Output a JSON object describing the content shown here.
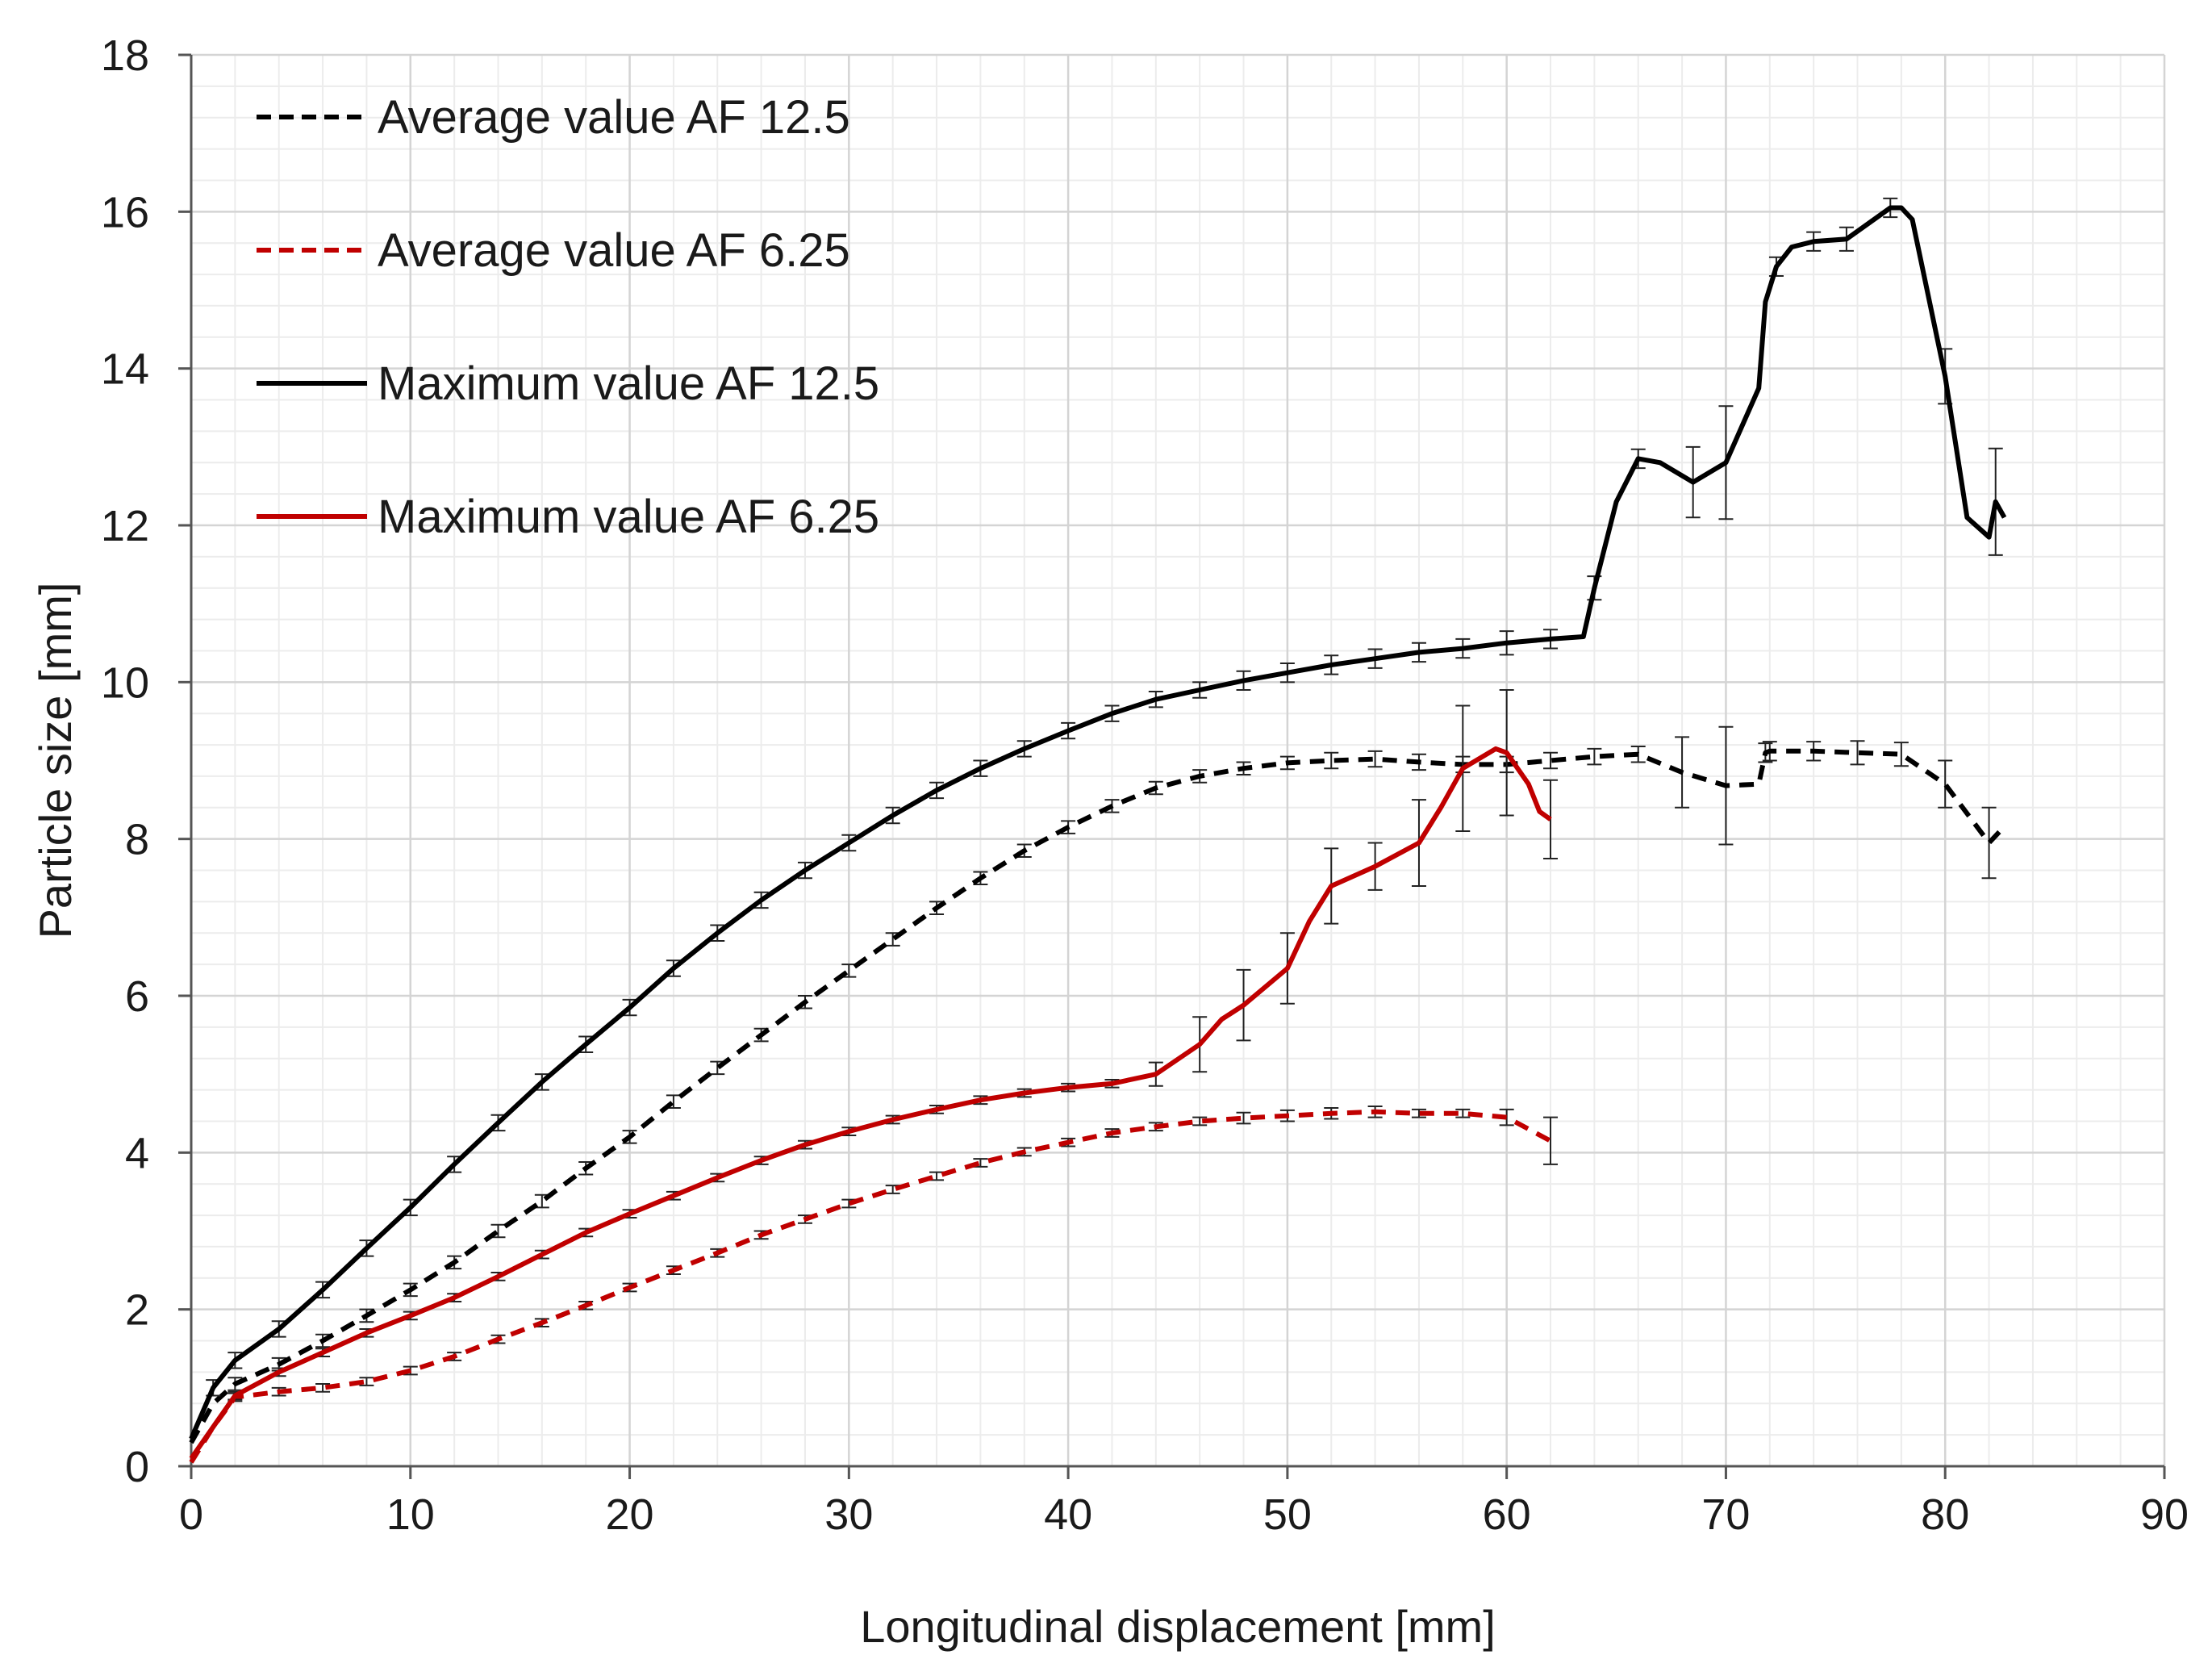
{
  "chart_data": {
    "type": "line",
    "title": "",
    "xlabel": "Longitudinal displacement  [mm]",
    "ylabel": "Particle size [mm]",
    "xlim": [
      0,
      90
    ],
    "ylim": [
      0,
      18
    ],
    "xticks": [
      0,
      10,
      20,
      30,
      40,
      50,
      60,
      70,
      80,
      90
    ],
    "yticks": [
      0,
      2,
      4,
      6,
      8,
      10,
      12,
      14,
      16,
      18
    ],
    "xtick_labels": [
      "0",
      "10",
      "20",
      "30",
      "40",
      "50",
      "60",
      "70",
      "80",
      "90"
    ],
    "ytick_labels": [
      "0",
      "2",
      "4",
      "6",
      "8",
      "10",
      "12",
      "14",
      "16",
      "18"
    ],
    "grid": true,
    "legend_position": "top-left",
    "series": [
      {
        "name": "Average value AF 12.5",
        "color": "#000000",
        "dash": "dashed",
        "x": [
          0,
          1,
          2,
          4,
          6,
          8,
          10,
          12,
          14,
          16,
          18,
          20,
          22,
          24,
          26,
          28,
          30,
          32,
          34,
          36,
          38,
          40,
          42,
          44,
          46,
          48,
          50,
          52,
          54,
          56,
          58,
          60,
          62,
          64,
          66,
          68,
          70,
          71.5,
          71.8,
          72,
          74,
          76,
          78,
          80,
          82,
          82.5
        ],
        "y": [
          0.3,
          0.8,
          1.05,
          1.3,
          1.6,
          1.92,
          2.25,
          2.6,
          3.0,
          3.38,
          3.8,
          4.2,
          4.65,
          5.08,
          5.5,
          5.92,
          6.32,
          6.72,
          7.12,
          7.5,
          7.85,
          8.15,
          8.42,
          8.65,
          8.8,
          8.9,
          8.97,
          9.0,
          9.02,
          8.98,
          8.95,
          8.95,
          9.0,
          9.05,
          9.08,
          8.85,
          8.68,
          8.7,
          9.1,
          9.12,
          9.12,
          9.1,
          9.08,
          8.7,
          7.95,
          8.1
        ],
        "errors": [
          0,
          0,
          0.08,
          0.08,
          0.08,
          0.08,
          0.08,
          0.08,
          0.08,
          0.08,
          0.08,
          0.08,
          0.08,
          0.08,
          0.08,
          0.08,
          0.08,
          0.08,
          0.08,
          0.08,
          0.08,
          0.08,
          0.08,
          0.08,
          0.08,
          0.08,
          0.08,
          0.1,
          0.1,
          0.1,
          0.1,
          0.1,
          0.1,
          0.1,
          0.1,
          0.45,
          0.75,
          0,
          0.12,
          0.12,
          0.12,
          0.15,
          0.15,
          0.3,
          0.45,
          0
        ]
      },
      {
        "name": "Average value AF 6.25",
        "color": "#c00000",
        "dash": "dashed",
        "x": [
          0,
          1,
          2,
          4,
          6,
          8,
          10,
          12,
          14,
          16,
          18,
          20,
          22,
          24,
          26,
          28,
          30,
          32,
          34,
          36,
          38,
          40,
          42,
          44,
          46,
          48,
          50,
          52,
          54,
          56,
          58,
          60,
          62
        ],
        "y": [
          0.05,
          0.5,
          0.88,
          0.95,
          1.0,
          1.08,
          1.22,
          1.4,
          1.62,
          1.83,
          2.05,
          2.28,
          2.5,
          2.72,
          2.95,
          3.15,
          3.35,
          3.53,
          3.7,
          3.87,
          4.01,
          4.13,
          4.25,
          4.33,
          4.4,
          4.44,
          4.47,
          4.5,
          4.52,
          4.5,
          4.5,
          4.45,
          4.15
        ],
        "errors": [
          0,
          0,
          0.05,
          0.05,
          0.05,
          0.05,
          0.05,
          0.05,
          0.05,
          0.05,
          0.05,
          0.05,
          0.05,
          0.05,
          0.05,
          0.05,
          0.05,
          0.05,
          0.05,
          0.05,
          0.05,
          0.05,
          0.05,
          0.05,
          0.05,
          0.07,
          0.07,
          0.07,
          0.07,
          0.05,
          0.05,
          0.1,
          0.3
        ]
      },
      {
        "name": "Maximum value AF 12.5",
        "color": "#000000",
        "dash": "solid",
        "x": [
          0,
          1,
          2,
          4,
          6,
          8,
          10,
          12,
          14,
          16,
          18,
          20,
          22,
          24,
          26,
          28,
          30,
          32,
          34,
          36,
          38,
          40,
          42,
          44,
          46,
          48,
          50,
          52,
          54,
          56,
          58,
          60,
          62,
          63.5,
          64,
          65,
          66,
          67,
          68.5,
          70,
          71.5,
          71.8,
          72.3,
          73,
          74,
          75.5,
          77.5,
          78,
          78.5,
          80,
          81,
          82,
          82.3,
          82.7
        ],
        "y": [
          0.35,
          1.0,
          1.35,
          1.75,
          2.25,
          2.78,
          3.3,
          3.85,
          4.38,
          4.9,
          5.38,
          5.85,
          6.35,
          6.8,
          7.22,
          7.6,
          7.95,
          8.3,
          8.62,
          8.9,
          9.15,
          9.38,
          9.6,
          9.78,
          9.9,
          10.02,
          10.12,
          10.22,
          10.3,
          10.38,
          10.43,
          10.5,
          10.55,
          10.58,
          11.2,
          12.3,
          12.85,
          12.8,
          12.55,
          12.8,
          13.75,
          14.85,
          15.3,
          15.55,
          15.62,
          15.65,
          16.05,
          16.05,
          15.9,
          13.9,
          12.1,
          11.85,
          12.3,
          12.1
        ],
        "errors": [
          0,
          0.1,
          0.1,
          0.1,
          0.1,
          0.1,
          0.1,
          0.1,
          0.1,
          0.1,
          0.1,
          0.1,
          0.1,
          0.1,
          0.1,
          0.1,
          0.1,
          0.1,
          0.1,
          0.1,
          0.1,
          0.1,
          0.1,
          0.1,
          0.1,
          0.12,
          0.12,
          0.12,
          0.12,
          0.12,
          0.12,
          0.15,
          0.12,
          0,
          0.15,
          0,
          0.12,
          0,
          0.45,
          0.72,
          0,
          0,
          0.12,
          0,
          0.12,
          0.15,
          0.12,
          0,
          0,
          0.35,
          0,
          0,
          0.68,
          0
        ],
        "error_x": []
      },
      {
        "name": "Maximum value AF 6.25",
        "color": "#c00000",
        "dash": "solid",
        "x": [
          0,
          1,
          2,
          4,
          6,
          8,
          10,
          12,
          14,
          16,
          18,
          20,
          22,
          24,
          26,
          28,
          30,
          32,
          34,
          36,
          38,
          40,
          42,
          44,
          46,
          47,
          48,
          50,
          51,
          52,
          54,
          56,
          57,
          58,
          59.5,
          60,
          61,
          61.5,
          62
        ],
        "y": [
          0.1,
          0.5,
          0.9,
          1.2,
          1.45,
          1.7,
          1.92,
          2.15,
          2.42,
          2.7,
          2.98,
          3.22,
          3.45,
          3.68,
          3.9,
          4.1,
          4.27,
          4.42,
          4.55,
          4.67,
          4.76,
          4.83,
          4.88,
          5.0,
          5.38,
          5.7,
          5.88,
          6.35,
          6.95,
          7.4,
          7.65,
          7.95,
          8.4,
          8.9,
          9.15,
          9.1,
          8.7,
          8.35,
          8.25
        ],
        "errors": [
          0,
          0,
          0.05,
          0.05,
          0.05,
          0.05,
          0.05,
          0.05,
          0.05,
          0.05,
          0.05,
          0.05,
          0.05,
          0.05,
          0.05,
          0.05,
          0.05,
          0.05,
          0.05,
          0.05,
          0.05,
          0.05,
          0.05,
          0.15,
          0.35,
          0,
          0.45,
          0.45,
          0,
          0.48,
          0.3,
          0.55,
          0,
          0.8,
          0,
          0.8,
          0,
          0,
          0.5
        ]
      }
    ]
  }
}
